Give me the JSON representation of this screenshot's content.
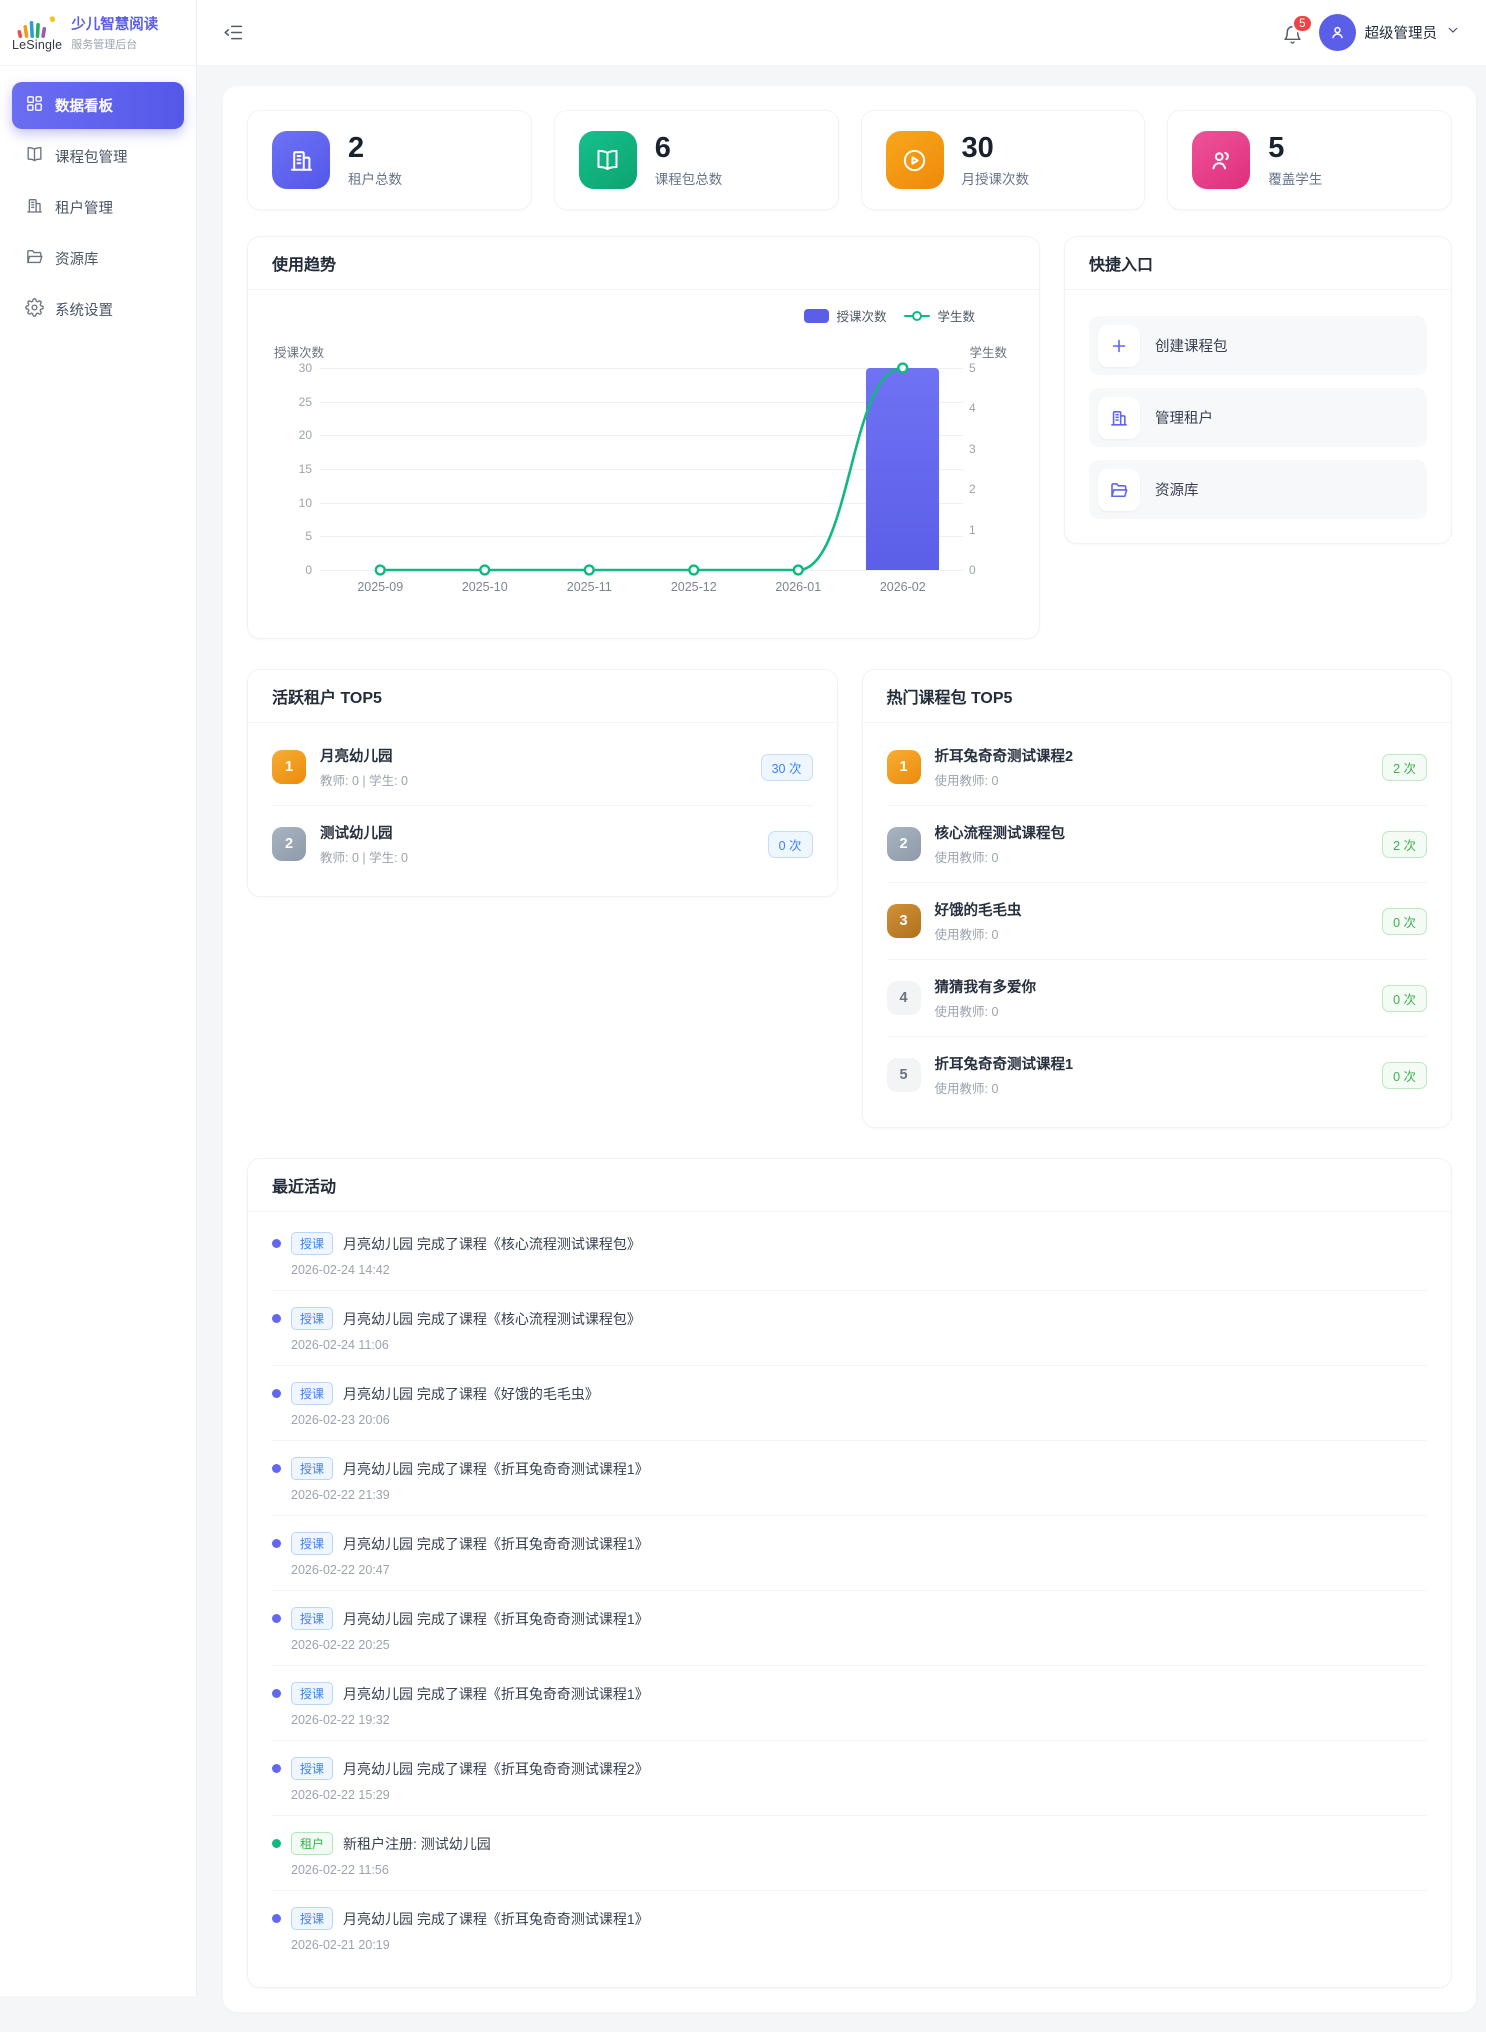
{
  "sidebar": {
    "logo_text": "LeSingle",
    "app_title": "少儿智慧阅读",
    "app_subtitle": "服务管理后台",
    "items": [
      {
        "label": "数据看板",
        "icon": "dashboard",
        "active": true
      },
      {
        "label": "课程包管理",
        "icon": "book",
        "active": false
      },
      {
        "label": "租户管理",
        "icon": "building",
        "active": false
      },
      {
        "label": "资源库",
        "icon": "folder",
        "active": false
      },
      {
        "label": "系统设置",
        "icon": "gear",
        "active": false
      }
    ]
  },
  "header": {
    "notification_count": "5",
    "user_name": "超级管理员"
  },
  "stats": [
    {
      "value": "2",
      "label": "租户总数",
      "icon": "building",
      "gradient": [
        "#6e72f5",
        "#5357e8"
      ]
    },
    {
      "value": "6",
      "label": "课程包总数",
      "icon": "book",
      "gradient": [
        "#16c08d",
        "#0da371"
      ]
    },
    {
      "value": "30",
      "label": "月授课次数",
      "icon": "play",
      "gradient": [
        "#f8a61c",
        "#ee8a0b"
      ]
    },
    {
      "value": "5",
      "label": "覆盖学生",
      "icon": "users",
      "gradient": [
        "#ef5399",
        "#de2f7d"
      ]
    }
  ],
  "chart_card": {
    "title": "使用趋势"
  },
  "chart_data": {
    "type": "bar",
    "categories": [
      "2025-09",
      "2025-10",
      "2025-11",
      "2025-12",
      "2026-01",
      "2026-02"
    ],
    "series": [
      {
        "name": "授课次数",
        "type": "bar",
        "axis": "left",
        "values": [
          0,
          0,
          0,
          0,
          0,
          30
        ],
        "color": "#5b5fe8"
      },
      {
        "name": "学生数",
        "type": "line",
        "axis": "right",
        "values": [
          0,
          0,
          0,
          0,
          0,
          5
        ],
        "color": "#10b981"
      }
    ],
    "left_axis": {
      "title": "授课次数",
      "min": 0,
      "max": 30,
      "ticks": [
        0,
        5,
        10,
        15,
        20,
        25,
        30
      ]
    },
    "right_axis": {
      "title": "学生数",
      "min": 0,
      "max": 5,
      "ticks": [
        0,
        1,
        2,
        3,
        4,
        5
      ]
    },
    "legend": [
      "授课次数",
      "学生数"
    ],
    "legend_position": "top-right",
    "grid": true
  },
  "quick_entry": {
    "title": "快捷入口",
    "items": [
      {
        "label": "创建课程包",
        "icon": "plus"
      },
      {
        "label": "管理租户",
        "icon": "building"
      },
      {
        "label": "资源库",
        "icon": "folder"
      }
    ]
  },
  "active_tenants": {
    "title": "活跃租户 TOP5",
    "items": [
      {
        "rank": "1",
        "name": "月亮幼儿园",
        "meta": "教师: 0 | 学生: 0",
        "count": "30 次"
      },
      {
        "rank": "2",
        "name": "测试幼儿园",
        "meta": "教师: 0 | 学生: 0",
        "count": "0 次"
      }
    ]
  },
  "hot_packages": {
    "title": "热门课程包 TOP5",
    "items": [
      {
        "rank": "1",
        "name": "折耳兔奇奇测试课程2",
        "meta": "使用教师: 0",
        "count": "2 次"
      },
      {
        "rank": "2",
        "name": "核心流程测试课程包",
        "meta": "使用教师: 0",
        "count": "2 次"
      },
      {
        "rank": "3",
        "name": "好饿的毛毛虫",
        "meta": "使用教师: 0",
        "count": "0 次"
      },
      {
        "rank": "4",
        "name": "猜猜我有多爱你",
        "meta": "使用教师: 0",
        "count": "0 次"
      },
      {
        "rank": "5",
        "name": "折耳兔奇奇测试课程1",
        "meta": "使用教师: 0",
        "count": "0 次"
      }
    ]
  },
  "recent_activities": {
    "title": "最近活动",
    "items": [
      {
        "badge": "授课",
        "type": "teach",
        "text": "月亮幼儿园 完成了课程《核心流程测试课程包》",
        "time": "2026-02-24 14:42"
      },
      {
        "badge": "授课",
        "type": "teach",
        "text": "月亮幼儿园 完成了课程《核心流程测试课程包》",
        "time": "2026-02-24 11:06"
      },
      {
        "badge": "授课",
        "type": "teach",
        "text": "月亮幼儿园 完成了课程《好饿的毛毛虫》",
        "time": "2026-02-23 20:06"
      },
      {
        "badge": "授课",
        "type": "teach",
        "text": "月亮幼儿园 完成了课程《折耳兔奇奇测试课程1》",
        "time": "2026-02-22 21:39"
      },
      {
        "badge": "授课",
        "type": "teach",
        "text": "月亮幼儿园 完成了课程《折耳兔奇奇测试课程1》",
        "time": "2026-02-22 20:47"
      },
      {
        "badge": "授课",
        "type": "teach",
        "text": "月亮幼儿园 完成了课程《折耳兔奇奇测试课程1》",
        "time": "2026-02-22 20:25"
      },
      {
        "badge": "授课",
        "type": "teach",
        "text": "月亮幼儿园 完成了课程《折耳兔奇奇测试课程1》",
        "time": "2026-02-22 19:32"
      },
      {
        "badge": "授课",
        "type": "teach",
        "text": "月亮幼儿园 完成了课程《折耳兔奇奇测试课程2》",
        "time": "2026-02-22 15:29"
      },
      {
        "badge": "租户",
        "type": "tenant",
        "text": "新租户注册: 测试幼儿园",
        "time": "2026-02-22 11:56"
      },
      {
        "badge": "授课",
        "type": "teach",
        "text": "月亮幼儿园 完成了课程《折耳兔奇奇测试课程1》",
        "time": "2026-02-21 20:19"
      }
    ]
  }
}
